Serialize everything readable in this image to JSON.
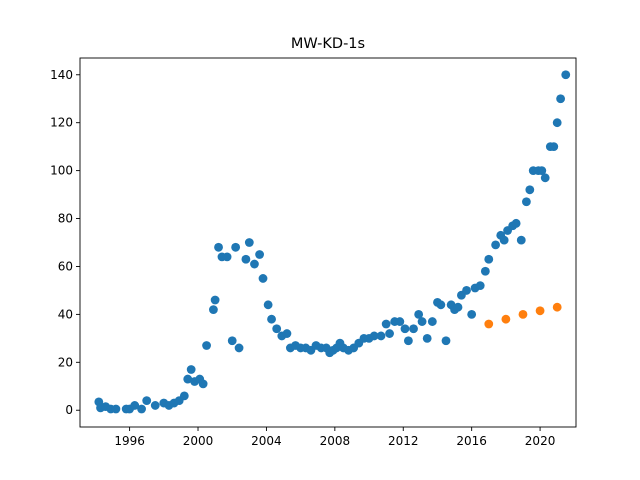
{
  "chart_data": {
    "type": "scatter",
    "title": "MW-KD-1s",
    "xlabel": "",
    "ylabel": "",
    "xlim": [
      1993.1,
      2022.1
    ],
    "ylim": [
      -7,
      147
    ],
    "x_ticks": [
      1996,
      2000,
      2004,
      2008,
      2012,
      2016,
      2020
    ],
    "y_ticks": [
      0,
      20,
      40,
      60,
      80,
      100,
      120,
      140
    ],
    "grid": false,
    "legend": "none",
    "series": [
      {
        "color": "#1f77b4",
        "points": [
          [
            1994.2,
            3.5
          ],
          [
            1994.3,
            1.0
          ],
          [
            1994.6,
            1.5
          ],
          [
            1994.9,
            0.5
          ],
          [
            1995.2,
            0.5
          ],
          [
            1995.8,
            0.5
          ],
          [
            1996.0,
            0.5
          ],
          [
            1996.3,
            2.0
          ],
          [
            1996.7,
            0.5
          ],
          [
            1997.0,
            4.0
          ],
          [
            1997.5,
            2.0
          ],
          [
            1998.0,
            3.0
          ],
          [
            1998.3,
            2.0
          ],
          [
            1998.6,
            3.0
          ],
          [
            1998.9,
            4.0
          ],
          [
            1999.2,
            6.0
          ],
          [
            1999.4,
            13.0
          ],
          [
            1999.6,
            17.0
          ],
          [
            1999.8,
            12.0
          ],
          [
            2000.1,
            13.0
          ],
          [
            2000.3,
            11.0
          ],
          [
            2000.5,
            27.0
          ],
          [
            2000.9,
            42.0
          ],
          [
            2001.0,
            46.0
          ],
          [
            2001.2,
            68.0
          ],
          [
            2001.4,
            64.0
          ],
          [
            2001.7,
            64.0
          ],
          [
            2002.0,
            29.0
          ],
          [
            2002.2,
            68.0
          ],
          [
            2002.4,
            26.0
          ],
          [
            2002.8,
            63.0
          ],
          [
            2003.0,
            70.0
          ],
          [
            2003.3,
            61.0
          ],
          [
            2003.6,
            65.0
          ],
          [
            2003.8,
            55.0
          ],
          [
            2004.1,
            44.0
          ],
          [
            2004.3,
            38.0
          ],
          [
            2004.6,
            34.0
          ],
          [
            2004.9,
            31.0
          ],
          [
            2005.2,
            32.0
          ],
          [
            2005.4,
            26.0
          ],
          [
            2005.7,
            27.0
          ],
          [
            2006.0,
            26.0
          ],
          [
            2006.3,
            26.0
          ],
          [
            2006.6,
            25.0
          ],
          [
            2006.9,
            27.0
          ],
          [
            2007.2,
            26.0
          ],
          [
            2007.5,
            26.0
          ],
          [
            2007.7,
            24.0
          ],
          [
            2007.9,
            25.0
          ],
          [
            2008.1,
            26.0
          ],
          [
            2008.3,
            28.0
          ],
          [
            2008.5,
            26.0
          ],
          [
            2008.8,
            25.0
          ],
          [
            2009.1,
            26.0
          ],
          [
            2009.4,
            28.0
          ],
          [
            2009.7,
            30.0
          ],
          [
            2010.0,
            30.0
          ],
          [
            2010.3,
            31.0
          ],
          [
            2010.7,
            31.0
          ],
          [
            2011.0,
            36.0
          ],
          [
            2011.2,
            32.0
          ],
          [
            2011.5,
            37.0
          ],
          [
            2011.8,
            37.0
          ],
          [
            2012.1,
            34.0
          ],
          [
            2012.3,
            29.0
          ],
          [
            2012.6,
            34.0
          ],
          [
            2012.9,
            40.0
          ],
          [
            2013.1,
            37.0
          ],
          [
            2013.4,
            30.0
          ],
          [
            2013.7,
            37.0
          ],
          [
            2014.0,
            45.0
          ],
          [
            2014.2,
            44.0
          ],
          [
            2014.5,
            29.0
          ],
          [
            2014.8,
            44.0
          ],
          [
            2015.0,
            42.0
          ],
          [
            2015.2,
            43.0
          ],
          [
            2015.4,
            48.0
          ],
          [
            2015.7,
            50.0
          ],
          [
            2016.0,
            40.0
          ],
          [
            2016.2,
            51.0
          ],
          [
            2016.5,
            52.0
          ],
          [
            2016.8,
            58.0
          ],
          [
            2017.0,
            63.0
          ],
          [
            2017.4,
            69.0
          ],
          [
            2017.7,
            73.0
          ],
          [
            2017.9,
            71.0
          ],
          [
            2018.1,
            75.0
          ],
          [
            2018.4,
            77.0
          ],
          [
            2018.6,
            78.0
          ],
          [
            2018.9,
            71.0
          ],
          [
            2019.2,
            87.0
          ],
          [
            2019.4,
            92.0
          ],
          [
            2019.6,
            100.0
          ],
          [
            2019.9,
            100.0
          ],
          [
            2020.1,
            100.0
          ],
          [
            2020.3,
            97.0
          ],
          [
            2020.6,
            110.0
          ],
          [
            2020.8,
            110.0
          ],
          [
            2021.0,
            120.0
          ],
          [
            2021.2,
            130.0
          ],
          [
            2021.5,
            140.0
          ]
        ]
      },
      {
        "color": "#ff7f0e",
        "points": [
          [
            2017.0,
            36.0
          ],
          [
            2018.0,
            38.0
          ],
          [
            2019.0,
            40.0
          ],
          [
            2020.0,
            41.5
          ],
          [
            2021.0,
            43.0
          ]
        ]
      }
    ]
  }
}
